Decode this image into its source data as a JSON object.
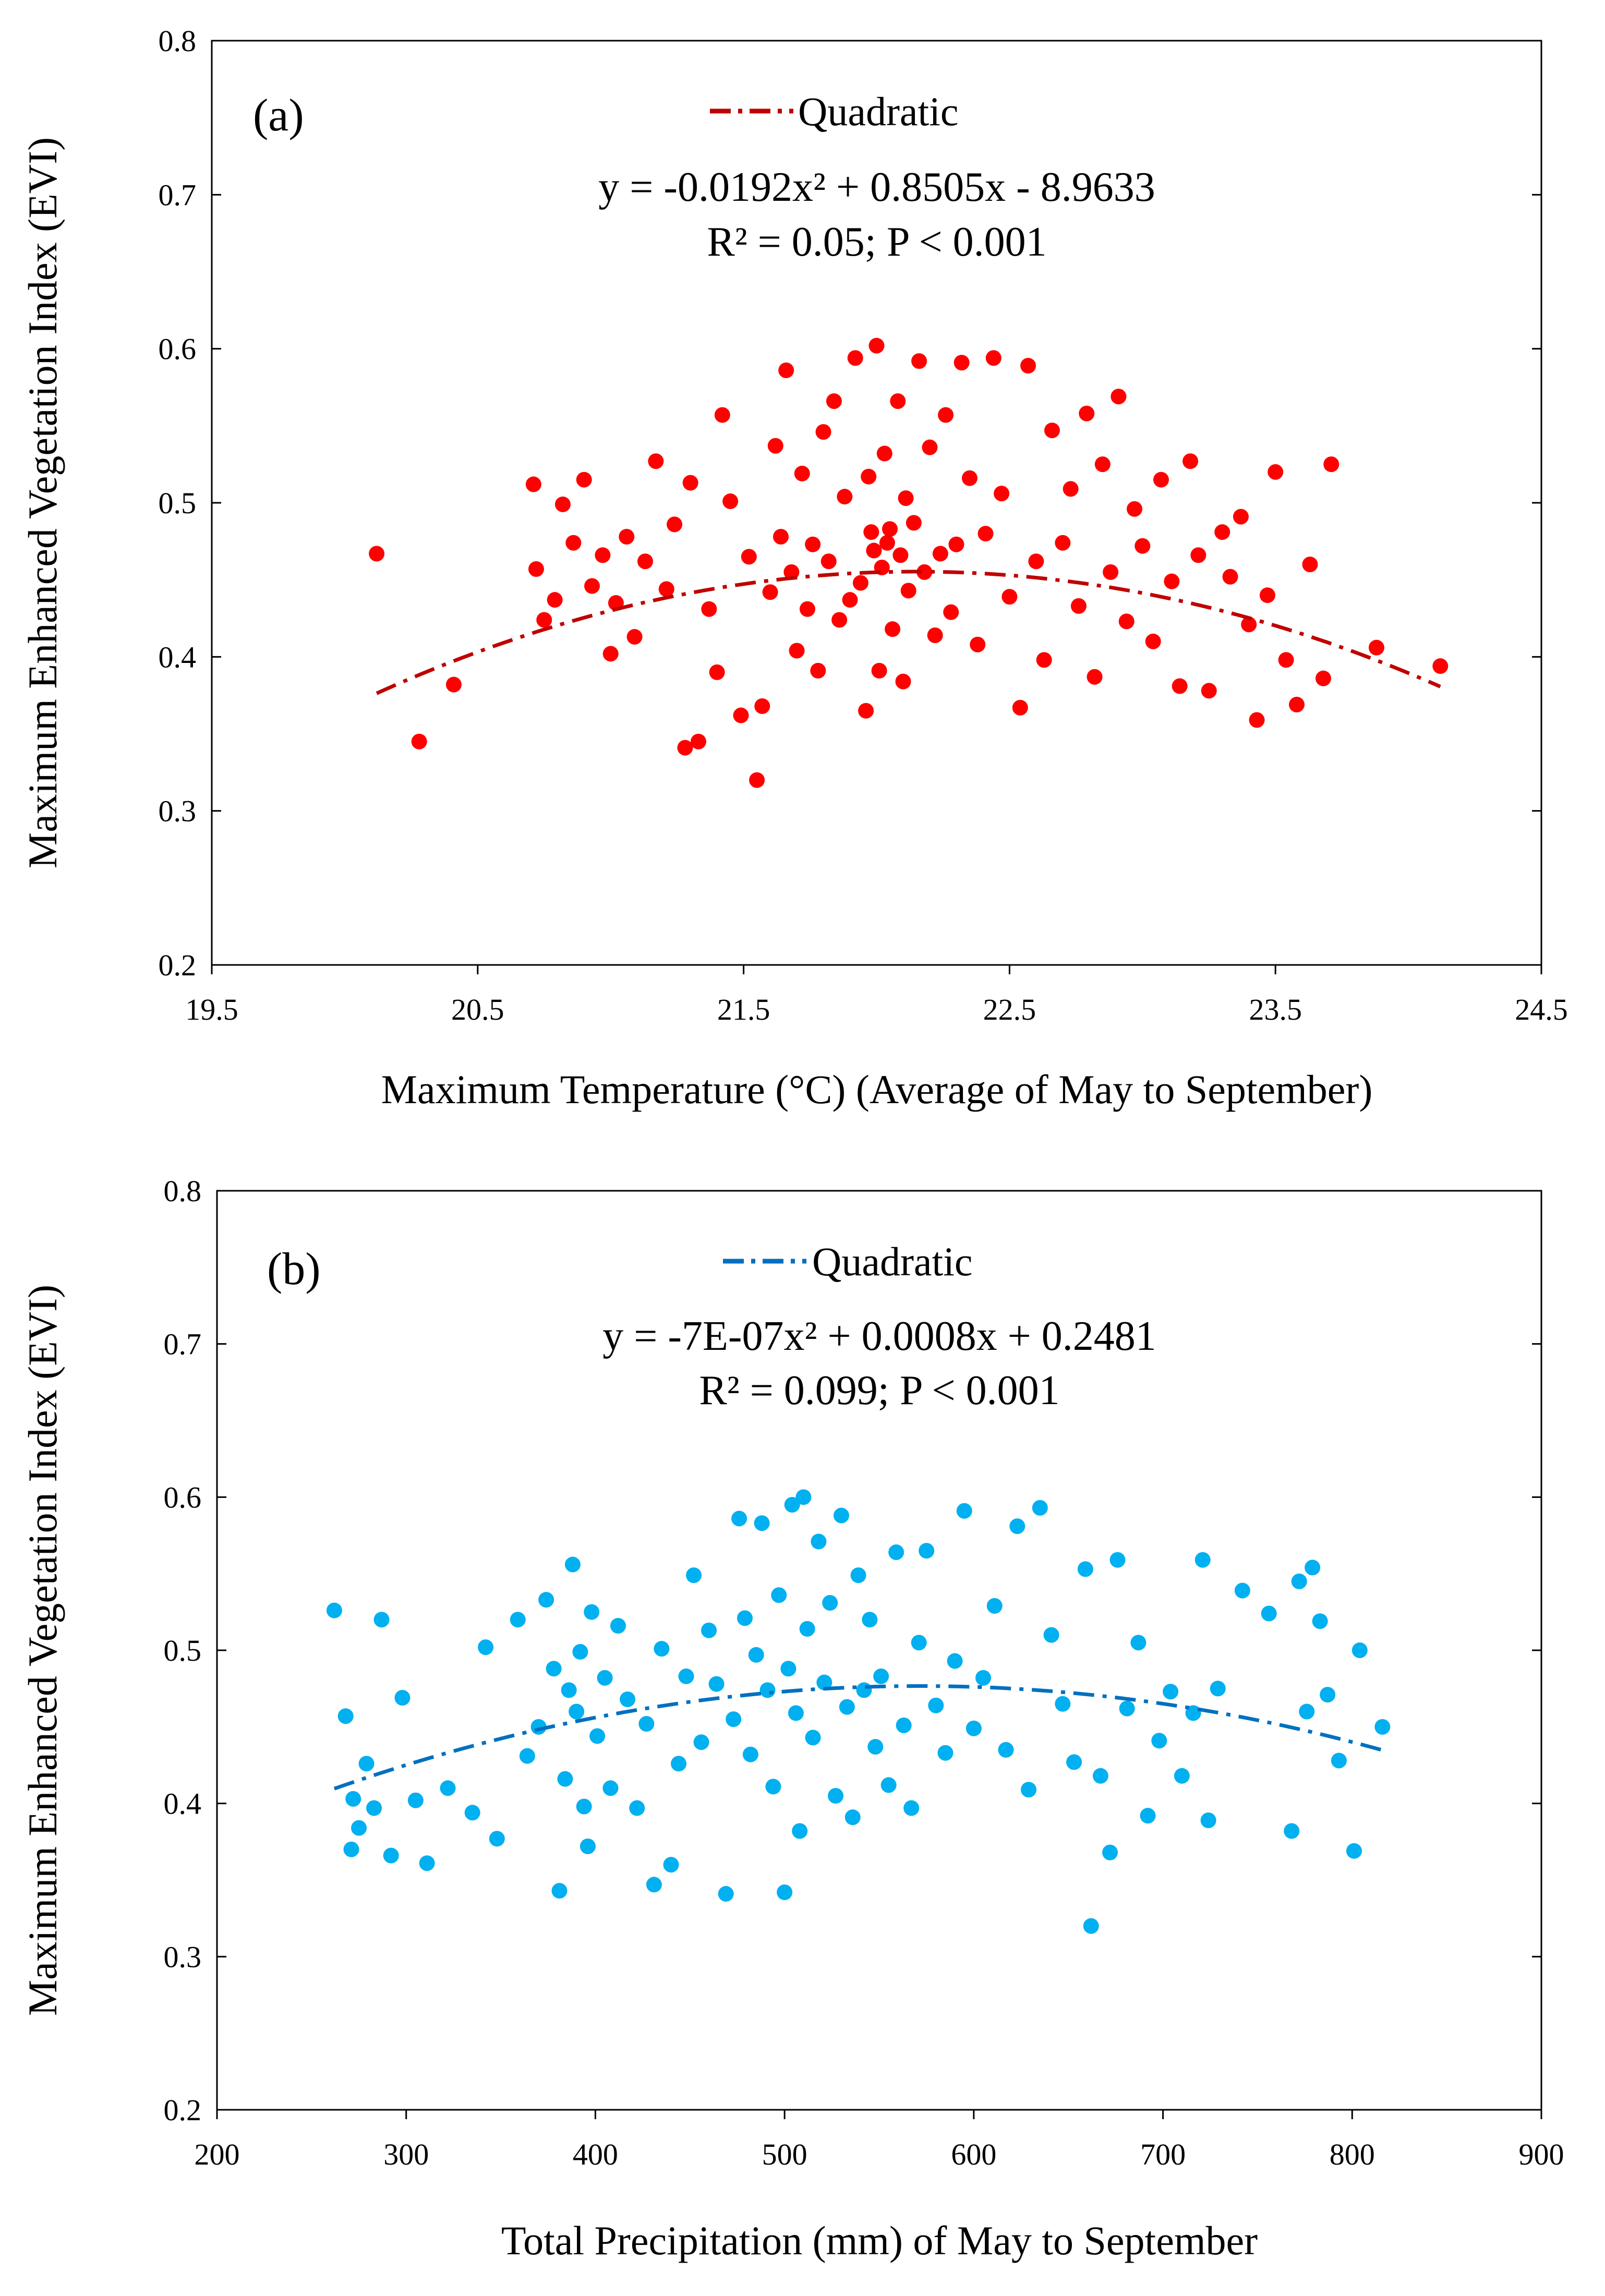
{
  "chart_data": [
    {
      "panel_label": "(a)",
      "type": "scatter",
      "color": "#FF0000",
      "trend_color": "#C00000",
      "xlabel": "Maximum Temperature (°C) (Average of May to September)",
      "ylabel": "Maximum Enhanced Vegetation Index (EVI)",
      "xlim": [
        19.5,
        24.5
      ],
      "ylim": [
        0.2,
        0.8
      ],
      "xticks": [
        "19.5",
        "20.5",
        "21.5",
        "22.5",
        "23.5",
        "24.5"
      ],
      "yticks": [
        "0.2",
        "0.3",
        "0.4",
        "0.5",
        "0.6",
        "0.7",
        "0.8"
      ],
      "legend_label": "Quadratic",
      "equation": "y = -0.0192x² + 0.8505x - 8.9633",
      "stats": "R² = 0.05; P < 0.001",
      "trend": {
        "a": -0.0192,
        "b": 0.8505,
        "c": -8.9633,
        "x_range": [
          20.12,
          24.12
        ]
      },
      "points": [
        [
          20.12,
          0.467
        ],
        [
          20.28,
          0.345
        ],
        [
          20.41,
          0.382
        ],
        [
          20.71,
          0.512
        ],
        [
          20.72,
          0.457
        ],
        [
          20.75,
          0.424
        ],
        [
          20.79,
          0.437
        ],
        [
          20.82,
          0.499
        ],
        [
          20.86,
          0.474
        ],
        [
          20.9,
          0.515
        ],
        [
          20.93,
          0.446
        ],
        [
          20.97,
          0.466
        ],
        [
          21.0,
          0.402
        ],
        [
          21.02,
          0.435
        ],
        [
          21.06,
          0.478
        ],
        [
          21.09,
          0.413
        ],
        [
          21.13,
          0.462
        ],
        [
          21.17,
          0.527
        ],
        [
          21.21,
          0.444
        ],
        [
          21.24,
          0.486
        ],
        [
          21.28,
          0.341
        ],
        [
          21.3,
          0.513
        ],
        [
          21.33,
          0.345
        ],
        [
          21.37,
          0.431
        ],
        [
          21.4,
          0.39
        ],
        [
          21.42,
          0.557
        ],
        [
          21.45,
          0.501
        ],
        [
          21.49,
          0.362
        ],
        [
          21.52,
          0.465
        ],
        [
          21.55,
          0.32
        ],
        [
          21.57,
          0.368
        ],
        [
          21.6,
          0.442
        ],
        [
          21.62,
          0.537
        ],
        [
          21.64,
          0.478
        ],
        [
          21.66,
          0.586
        ],
        [
          21.68,
          0.455
        ],
        [
          21.7,
          0.404
        ],
        [
          21.72,
          0.519
        ],
        [
          21.74,
          0.431
        ],
        [
          21.76,
          0.473
        ],
        [
          21.78,
          0.391
        ],
        [
          21.8,
          0.546
        ],
        [
          21.82,
          0.462
        ],
        [
          21.84,
          0.566
        ],
        [
          21.86,
          0.424
        ],
        [
          21.88,
          0.504
        ],
        [
          21.9,
          0.437
        ],
        [
          21.92,
          0.594
        ],
        [
          21.94,
          0.448
        ],
        [
          21.96,
          0.365
        ],
        [
          21.97,
          0.517
        ],
        [
          21.98,
          0.481
        ],
        [
          21.99,
          0.469
        ],
        [
          22.0,
          0.602
        ],
        [
          22.01,
          0.391
        ],
        [
          22.02,
          0.458
        ],
        [
          22.03,
          0.532
        ],
        [
          22.04,
          0.474
        ],
        [
          22.05,
          0.483
        ],
        [
          22.06,
          0.418
        ],
        [
          22.08,
          0.566
        ],
        [
          22.09,
          0.466
        ],
        [
          22.1,
          0.384
        ],
        [
          22.11,
          0.503
        ],
        [
          22.12,
          0.443
        ],
        [
          22.14,
          0.487
        ],
        [
          22.16,
          0.592
        ],
        [
          22.18,
          0.455
        ],
        [
          22.2,
          0.536
        ],
        [
          22.22,
          0.414
        ],
        [
          22.24,
          0.467
        ],
        [
          22.26,
          0.557
        ],
        [
          22.28,
          0.429
        ],
        [
          22.3,
          0.473
        ],
        [
          22.32,
          0.591
        ],
        [
          22.35,
          0.516
        ],
        [
          22.38,
          0.408
        ],
        [
          22.41,
          0.48
        ],
        [
          22.44,
          0.594
        ],
        [
          22.47,
          0.506
        ],
        [
          22.5,
          0.439
        ],
        [
          22.54,
          0.367
        ],
        [
          22.57,
          0.589
        ],
        [
          22.6,
          0.462
        ],
        [
          22.63,
          0.398
        ],
        [
          22.66,
          0.547
        ],
        [
          22.7,
          0.474
        ],
        [
          22.73,
          0.509
        ],
        [
          22.76,
          0.433
        ],
        [
          22.79,
          0.558
        ],
        [
          22.82,
          0.387
        ],
        [
          22.85,
          0.525
        ],
        [
          22.88,
          0.455
        ],
        [
          22.91,
          0.569
        ],
        [
          22.94,
          0.423
        ],
        [
          22.97,
          0.496
        ],
        [
          23.0,
          0.472
        ],
        [
          23.04,
          0.41
        ],
        [
          23.07,
          0.515
        ],
        [
          23.11,
          0.449
        ],
        [
          23.14,
          0.381
        ],
        [
          23.18,
          0.527
        ],
        [
          23.21,
          0.466
        ],
        [
          23.25,
          0.378
        ],
        [
          23.3,
          0.481
        ],
        [
          23.33,
          0.452
        ],
        [
          23.37,
          0.491
        ],
        [
          23.4,
          0.421
        ],
        [
          23.43,
          0.359
        ],
        [
          23.47,
          0.44
        ],
        [
          23.5,
          0.52
        ],
        [
          23.54,
          0.398
        ],
        [
          23.58,
          0.369
        ],
        [
          23.63,
          0.46
        ],
        [
          23.68,
          0.386
        ],
        [
          23.71,
          0.525
        ],
        [
          23.88,
          0.406
        ],
        [
          24.12,
          0.394
        ]
      ]
    },
    {
      "panel_label": "(b)",
      "type": "scatter",
      "color": "#00B0F0",
      "trend_color": "#0070C0",
      "xlabel": "Total Precipitation (mm) of May to September",
      "ylabel": "Maximum Enhanced Vegetation Index (EVI)",
      "xlim": [
        200,
        900
      ],
      "ylim": [
        0.2,
        0.8
      ],
      "xticks": [
        "200",
        "300",
        "400",
        "500",
        "600",
        "700",
        "800",
        "900"
      ],
      "yticks": [
        "0.2",
        "0.3",
        "0.4",
        "0.5",
        "0.6",
        "0.7",
        "0.8"
      ],
      "legend_label": "Quadratic",
      "equation": "y = -7E-07x² + 0.0008x + 0.2481",
      "stats": "R² = 0.099; P < 0.001",
      "trend": {
        "a": -7e-07,
        "b": 0.0008,
        "c": 0.2481,
        "x_range": [
          262,
          816
        ]
      },
      "points": [
        [
          262,
          0.526
        ],
        [
          268,
          0.457
        ],
        [
          271,
          0.37
        ],
        [
          272,
          0.403
        ],
        [
          275,
          0.384
        ],
        [
          279,
          0.426
        ],
        [
          283,
          0.397
        ],
        [
          287,
          0.52
        ],
        [
          292,
          0.366
        ],
        [
          298,
          0.469
        ],
        [
          305,
          0.402
        ],
        [
          311,
          0.361
        ],
        [
          322,
          0.41
        ],
        [
          335,
          0.394
        ],
        [
          342,
          0.502
        ],
        [
          348,
          0.377
        ],
        [
          359,
          0.52
        ],
        [
          364,
          0.431
        ],
        [
          370,
          0.45
        ],
        [
          374,
          0.533
        ],
        [
          378,
          0.488
        ],
        [
          381,
          0.343
        ],
        [
          384,
          0.416
        ],
        [
          386,
          0.474
        ],
        [
          388,
          0.556
        ],
        [
          390,
          0.46
        ],
        [
          392,
          0.499
        ],
        [
          394,
          0.398
        ],
        [
          396,
          0.372
        ],
        [
          398,
          0.525
        ],
        [
          401,
          0.444
        ],
        [
          405,
          0.482
        ],
        [
          408,
          0.41
        ],
        [
          412,
          0.516
        ],
        [
          417,
          0.468
        ],
        [
          422,
          0.397
        ],
        [
          427,
          0.452
        ],
        [
          431,
          0.347
        ],
        [
          435,
          0.501
        ],
        [
          440,
          0.36
        ],
        [
          444,
          0.426
        ],
        [
          448,
          0.483
        ],
        [
          452,
          0.549
        ],
        [
          456,
          0.44
        ],
        [
          460,
          0.513
        ],
        [
          464,
          0.478
        ],
        [
          469,
          0.341
        ],
        [
          473,
          0.455
        ],
        [
          476,
          0.586
        ],
        [
          479,
          0.521
        ],
        [
          482,
          0.432
        ],
        [
          485,
          0.497
        ],
        [
          488,
          0.583
        ],
        [
          491,
          0.474
        ],
        [
          494,
          0.411
        ],
        [
          497,
          0.536
        ],
        [
          500,
          0.342
        ],
        [
          502,
          0.488
        ],
        [
          504,
          0.595
        ],
        [
          506,
          0.459
        ],
        [
          508,
          0.382
        ],
        [
          510,
          0.6
        ],
        [
          512,
          0.514
        ],
        [
          515,
          0.443
        ],
        [
          518,
          0.571
        ],
        [
          521,
          0.479
        ],
        [
          524,
          0.531
        ],
        [
          527,
          0.405
        ],
        [
          530,
          0.588
        ],
        [
          533,
          0.463
        ],
        [
          536,
          0.391
        ],
        [
          539,
          0.549
        ],
        [
          542,
          0.474
        ],
        [
          545,
          0.52
        ],
        [
          548,
          0.437
        ],
        [
          551,
          0.483
        ],
        [
          555,
          0.412
        ],
        [
          559,
          0.564
        ],
        [
          563,
          0.451
        ],
        [
          567,
          0.397
        ],
        [
          571,
          0.505
        ],
        [
          575,
          0.565
        ],
        [
          580,
          0.464
        ],
        [
          585,
          0.433
        ],
        [
          590,
          0.493
        ],
        [
          595,
          0.591
        ],
        [
          600,
          0.449
        ],
        [
          605,
          0.482
        ],
        [
          611,
          0.529
        ],
        [
          617,
          0.435
        ],
        [
          623,
          0.581
        ],
        [
          629,
          0.409
        ],
        [
          635,
          0.593
        ],
        [
          641,
          0.51
        ],
        [
          647,
          0.465
        ],
        [
          653,
          0.427
        ],
        [
          659,
          0.553
        ],
        [
          662,
          0.32
        ],
        [
          667,
          0.418
        ],
        [
          672,
          0.368
        ],
        [
          676,
          0.559
        ],
        [
          681,
          0.462
        ],
        [
          687,
          0.505
        ],
        [
          692,
          0.392
        ],
        [
          698,
          0.441
        ],
        [
          704,
          0.473
        ],
        [
          710,
          0.418
        ],
        [
          716,
          0.459
        ],
        [
          721,
          0.559
        ],
        [
          724,
          0.389
        ],
        [
          729,
          0.475
        ],
        [
          742,
          0.539
        ],
        [
          756,
          0.524
        ],
        [
          768,
          0.382
        ],
        [
          772,
          0.545
        ],
        [
          776,
          0.46
        ],
        [
          779,
          0.554
        ],
        [
          783,
          0.519
        ],
        [
          787,
          0.471
        ],
        [
          793,
          0.428
        ],
        [
          801,
          0.369
        ],
        [
          804,
          0.5
        ],
        [
          816,
          0.45
        ]
      ]
    }
  ]
}
